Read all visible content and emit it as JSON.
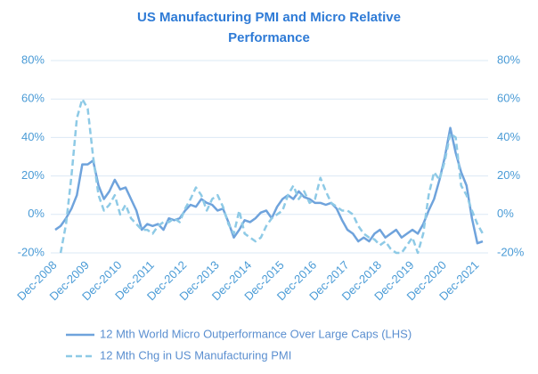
{
  "chart_data": {
    "type": "line",
    "title": "US Manufacturing PMI and Micro Relative",
    "subtitle": "Performance",
    "categories": [
      "Dec-2008",
      null,
      null,
      null,
      null,
      null,
      "Dec-2009",
      null,
      null,
      null,
      null,
      null,
      "Dec-2010",
      null,
      null,
      null,
      null,
      null,
      "Dec-2011",
      null,
      null,
      null,
      null,
      null,
      "Dec-2012",
      null,
      null,
      null,
      null,
      null,
      "Dec-2013",
      null,
      null,
      null,
      null,
      null,
      "Dec-2014",
      null,
      null,
      null,
      null,
      null,
      "Dec-2015",
      null,
      null,
      null,
      null,
      null,
      "Dec-2016",
      null,
      null,
      null,
      null,
      null,
      "Dec-2017",
      null,
      null,
      null,
      null,
      null,
      "Dec-2018",
      null,
      null,
      null,
      null,
      null,
      "Dec-2019",
      null,
      null,
      null,
      null,
      null,
      "Dec-2020",
      null,
      null,
      null,
      null,
      null,
      "Dec-2021",
      null
    ],
    "series": [
      {
        "name": "12 Mth World Micro Outperformance Over Large Caps (LHS)",
        "color": "#6fa3dc",
        "dash": false,
        "values": [
          -8,
          -6,
          -2,
          3,
          10,
          26,
          26,
          28,
          15,
          8,
          12,
          18,
          13,
          14,
          8,
          2,
          -8,
          -5,
          -6,
          -5,
          -8,
          -2,
          -3,
          -2,
          2,
          5,
          4,
          8,
          6,
          5,
          2,
          3,
          -4,
          -12,
          -8,
          -3,
          -4,
          -2,
          1,
          2,
          -2,
          4,
          8,
          10,
          8,
          12,
          9,
          8,
          6,
          6,
          5,
          6,
          3,
          -3,
          -8,
          -10,
          -14,
          -12,
          -14,
          -10,
          -8,
          -12,
          -10,
          -8,
          -12,
          -10,
          -8,
          -10,
          -5,
          2,
          8,
          18,
          30,
          45,
          32,
          22,
          15,
          -2,
          -15,
          -14
        ]
      },
      {
        "name": "12 Mth Chg in US Manufacturing PMI",
        "color": "#8ecae6",
        "dash": true,
        "axis": "y2",
        "values": [
          null,
          -20,
          -5,
          20,
          50,
          60,
          55,
          30,
          10,
          2,
          5,
          10,
          0,
          5,
          -2,
          -5,
          -8,
          -8,
          -10,
          -6,
          -4,
          -4,
          -2,
          -4,
          3,
          8,
          14,
          10,
          2,
          8,
          10,
          4,
          -5,
          -10,
          2,
          -10,
          -12,
          -14,
          -12,
          -6,
          -2,
          0,
          2,
          10,
          15,
          8,
          12,
          6,
          8,
          19,
          12,
          6,
          4,
          2,
          2,
          0,
          -6,
          -10,
          -12,
          -13,
          -16,
          -14,
          -18,
          -20,
          -20,
          -16,
          -12,
          -20,
          -10,
          10,
          22,
          18,
          28,
          42,
          40,
          15,
          10,
          2,
          -5,
          -10
        ]
      }
    ],
    "ylim": [
      -20,
      80
    ],
    "yticks": [
      {
        "value": -20,
        "label": "-20%"
      },
      {
        "value": 0,
        "label": "0%"
      },
      {
        "value": 20,
        "label": "20%"
      },
      {
        "value": 40,
        "label": "40%"
      },
      {
        "value": 60,
        "label": "60%"
      },
      {
        "value": 80,
        "label": "80%"
      }
    ],
    "y2lim": [
      -20,
      80
    ],
    "y2ticks": [
      {
        "value": -20,
        "label": "-20%"
      },
      {
        "value": 0,
        "label": "0%"
      },
      {
        "value": 20,
        "label": "20%"
      },
      {
        "value": 40,
        "label": "40%"
      },
      {
        "value": 60,
        "label": "60%"
      },
      {
        "value": 80,
        "label": "80%"
      }
    ],
    "grid": true
  }
}
